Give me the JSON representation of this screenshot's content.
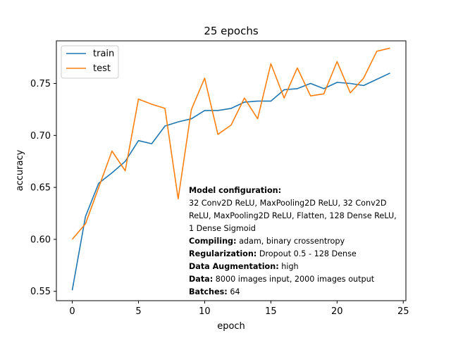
{
  "chart_data": {
    "type": "line",
    "title": "25 epochs",
    "xlabel": "epoch",
    "ylabel": "accuracy",
    "xlim": [
      -1.2,
      25.2
    ],
    "ylim": [
      0.541,
      0.791
    ],
    "xticks": [
      0,
      5,
      10,
      15,
      20,
      25
    ],
    "yticks": [
      0.55,
      0.6,
      0.65,
      0.7,
      0.75
    ],
    "grid": false,
    "legend_position": "top-left",
    "x": [
      0,
      1,
      2,
      3,
      4,
      5,
      6,
      7,
      8,
      9,
      10,
      11,
      12,
      13,
      14,
      15,
      16,
      17,
      18,
      19,
      20,
      21,
      22,
      23,
      24
    ],
    "series": [
      {
        "name": "train",
        "color": "#1f77b4",
        "values": [
          0.551,
          0.622,
          0.654,
          0.664,
          0.675,
          0.695,
          0.692,
          0.709,
          0.713,
          0.716,
          0.724,
          0.724,
          0.726,
          0.732,
          0.733,
          0.733,
          0.744,
          0.745,
          0.75,
          0.745,
          0.751,
          0.75,
          0.748,
          0.754,
          0.76
        ]
      },
      {
        "name": "test",
        "color": "#ff7f0e",
        "values": [
          0.6,
          0.615,
          0.65,
          0.685,
          0.666,
          0.735,
          0.73,
          0.726,
          0.639,
          0.725,
          0.755,
          0.701,
          0.71,
          0.736,
          0.716,
          0.769,
          0.736,
          0.765,
          0.738,
          0.74,
          0.771,
          0.741,
          0.755,
          0.781,
          0.784
        ]
      }
    ],
    "annotations": [
      {
        "label": "Model configuration:",
        "text": ""
      },
      {
        "label": "",
        "text": "32 Conv2D ReLU, MaxPooling2D ReLU, 32 Conv2D ReLU, MaxPooling2D ReLU, Flatten, 128 Dense ReLU, 1 Dense Sigmoid"
      },
      {
        "label": "Compiling:",
        "text": "adam, binary crossentropy"
      },
      {
        "label": "Regularization:",
        "text": "Dropout 0.5 - 128 Dense"
      },
      {
        "label": "Data Augmentation:",
        "text": "high"
      },
      {
        "label": "Data:",
        "text": "8000 images input, 2000 images output"
      },
      {
        "label": "Batches:",
        "text": "64"
      }
    ]
  }
}
